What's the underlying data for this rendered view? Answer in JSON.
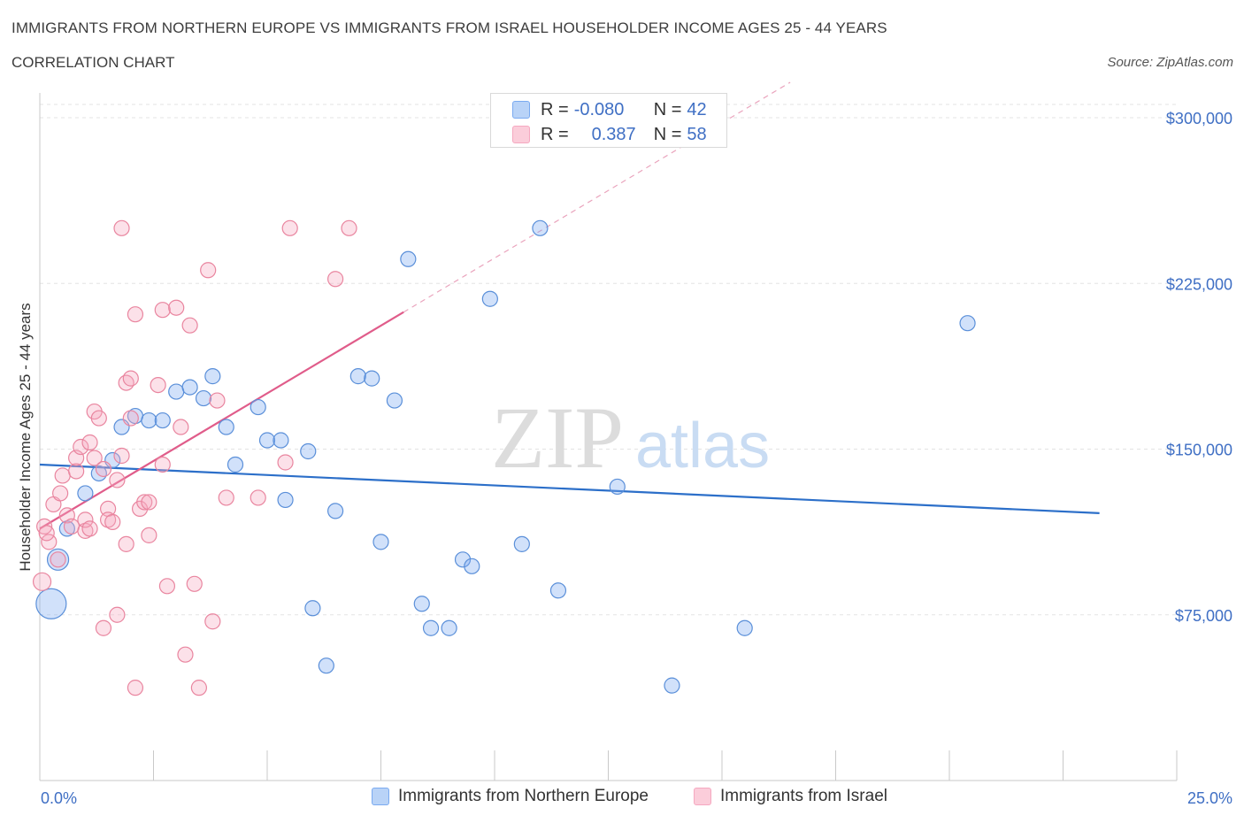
{
  "header": {
    "title": "IMMIGRANTS FROM NORTHERN EUROPE VS IMMIGRANTS FROM ISRAEL HOUSEHOLDER INCOME AGES 25 - 44 YEARS",
    "subtitle": "CORRELATION CHART",
    "source": "Source: ZipAtlas.com"
  },
  "watermark": {
    "zip": "ZIP",
    "atlas": "atlas"
  },
  "legend": {
    "r_label": "R =",
    "n_label": "N =",
    "rows": [
      {
        "r": "-0.080",
        "n": "42"
      },
      {
        "r": "0.387",
        "n": "58"
      }
    ]
  },
  "chart_data": {
    "type": "scatter",
    "xlabel": "",
    "ylabel": "Householder Income Ages 25 - 44 years",
    "x_unit": "percent",
    "xlim": [
      0,
      25
    ],
    "ylim": [
      0,
      300000
    ],
    "x_tick_labels": [
      "0.0%",
      "25.0%"
    ],
    "y_ticks": [
      75000,
      150000,
      225000,
      300000
    ],
    "y_tick_labels": [
      "$75,000",
      "$150,000",
      "$225,000",
      "$300,000"
    ],
    "grid": true,
    "legend_placement": "bottom",
    "series": [
      {
        "name": "Immigrants from Northern Europe",
        "color": "#7aaaf0",
        "stroke": "#5a8fd9",
        "r": -0.08,
        "n": 42,
        "trend": {
          "x": [
            0.0,
            23.3
          ],
          "y": [
            143000,
            121000
          ],
          "color": "#2c6fc9"
        },
        "points": [
          {
            "x": 0.25,
            "y": 80000,
            "size": "xl"
          },
          {
            "x": 0.4,
            "y": 100000,
            "size": "l"
          },
          {
            "x": 0.6,
            "y": 114000
          },
          {
            "x": 1.0,
            "y": 130000
          },
          {
            "x": 1.3,
            "y": 139000
          },
          {
            "x": 1.6,
            "y": 145000
          },
          {
            "x": 1.8,
            "y": 160000
          },
          {
            "x": 2.1,
            "y": 165000
          },
          {
            "x": 2.4,
            "y": 163000
          },
          {
            "x": 2.7,
            "y": 163000
          },
          {
            "x": 3.0,
            "y": 176000
          },
          {
            "x": 3.3,
            "y": 178000
          },
          {
            "x": 3.6,
            "y": 173000
          },
          {
            "x": 3.8,
            "y": 183000
          },
          {
            "x": 4.1,
            "y": 160000
          },
          {
            "x": 4.3,
            "y": 143000
          },
          {
            "x": 4.8,
            "y": 169000
          },
          {
            "x": 5.0,
            "y": 154000
          },
          {
            "x": 5.3,
            "y": 154000
          },
          {
            "x": 5.4,
            "y": 127000
          },
          {
            "x": 5.9,
            "y": 149000
          },
          {
            "x": 6.0,
            "y": 78000
          },
          {
            "x": 6.3,
            "y": 52000
          },
          {
            "x": 6.5,
            "y": 122000
          },
          {
            "x": 7.0,
            "y": 183000
          },
          {
            "x": 7.3,
            "y": 182000
          },
          {
            "x": 7.5,
            "y": 108000
          },
          {
            "x": 7.8,
            "y": 172000
          },
          {
            "x": 8.1,
            "y": 236000
          },
          {
            "x": 8.4,
            "y": 80000
          },
          {
            "x": 8.6,
            "y": 69000
          },
          {
            "x": 9.0,
            "y": 69000
          },
          {
            "x": 9.3,
            "y": 100000
          },
          {
            "x": 9.5,
            "y": 97000
          },
          {
            "x": 9.9,
            "y": 218000
          },
          {
            "x": 10.6,
            "y": 107000
          },
          {
            "x": 11.0,
            "y": 250000
          },
          {
            "x": 11.4,
            "y": 86000
          },
          {
            "x": 12.7,
            "y": 133000
          },
          {
            "x": 13.9,
            "y": 43000
          },
          {
            "x": 15.5,
            "y": 69000
          },
          {
            "x": 20.4,
            "y": 207000
          }
        ]
      },
      {
        "name": "Immigrants from Israel",
        "color": "#f5a8c0",
        "stroke": "#e9859f",
        "r": 0.387,
        "n": 58,
        "trend": {
          "x": [
            0.0,
            8.0
          ],
          "y": [
            114000,
            212000
          ],
          "dash_to": [
            16.5,
            316000
          ],
          "color": "#e05c8a"
        },
        "points": [
          {
            "x": 0.05,
            "y": 90000,
            "size": "m"
          },
          {
            "x": 0.1,
            "y": 115000
          },
          {
            "x": 0.2,
            "y": 108000
          },
          {
            "x": 0.3,
            "y": 125000
          },
          {
            "x": 0.4,
            "y": 100000
          },
          {
            "x": 0.45,
            "y": 130000
          },
          {
            "x": 0.5,
            "y": 138000
          },
          {
            "x": 0.6,
            "y": 120000
          },
          {
            "x": 0.7,
            "y": 115000
          },
          {
            "x": 0.8,
            "y": 140000
          },
          {
            "x": 0.8,
            "y": 146000
          },
          {
            "x": 0.9,
            "y": 151000
          },
          {
            "x": 1.0,
            "y": 113000
          },
          {
            "x": 1.0,
            "y": 118000
          },
          {
            "x": 1.1,
            "y": 153000
          },
          {
            "x": 1.2,
            "y": 146000
          },
          {
            "x": 1.2,
            "y": 167000
          },
          {
            "x": 1.3,
            "y": 164000
          },
          {
            "x": 1.4,
            "y": 69000
          },
          {
            "x": 1.4,
            "y": 141000
          },
          {
            "x": 1.5,
            "y": 123000
          },
          {
            "x": 1.5,
            "y": 118000
          },
          {
            "x": 1.6,
            "y": 117000
          },
          {
            "x": 1.7,
            "y": 75000
          },
          {
            "x": 1.7,
            "y": 136000
          },
          {
            "x": 1.8,
            "y": 250000
          },
          {
            "x": 1.8,
            "y": 147000
          },
          {
            "x": 1.9,
            "y": 107000
          },
          {
            "x": 1.9,
            "y": 180000
          },
          {
            "x": 2.0,
            "y": 164000
          },
          {
            "x": 2.0,
            "y": 182000
          },
          {
            "x": 2.1,
            "y": 211000
          },
          {
            "x": 2.1,
            "y": 42000
          },
          {
            "x": 2.2,
            "y": 123000
          },
          {
            "x": 2.3,
            "y": 126000
          },
          {
            "x": 2.4,
            "y": 126000
          },
          {
            "x": 2.4,
            "y": 111000
          },
          {
            "x": 2.6,
            "y": 179000
          },
          {
            "x": 2.7,
            "y": 143000
          },
          {
            "x": 2.7,
            "y": 213000
          },
          {
            "x": 2.8,
            "y": 88000
          },
          {
            "x": 3.0,
            "y": 214000
          },
          {
            "x": 3.1,
            "y": 160000
          },
          {
            "x": 3.2,
            "y": 57000
          },
          {
            "x": 3.3,
            "y": 206000
          },
          {
            "x": 3.4,
            "y": 89000
          },
          {
            "x": 3.5,
            "y": 42000
          },
          {
            "x": 3.7,
            "y": 231000
          },
          {
            "x": 3.8,
            "y": 72000
          },
          {
            "x": 3.9,
            "y": 172000
          },
          {
            "x": 4.1,
            "y": 128000
          },
          {
            "x": 4.8,
            "y": 128000
          },
          {
            "x": 5.4,
            "y": 144000
          },
          {
            "x": 5.5,
            "y": 250000
          },
          {
            "x": 6.5,
            "y": 227000
          },
          {
            "x": 6.8,
            "y": 250000
          },
          {
            "x": 0.15,
            "y": 112000
          },
          {
            "x": 1.1,
            "y": 114000
          }
        ]
      }
    ]
  }
}
